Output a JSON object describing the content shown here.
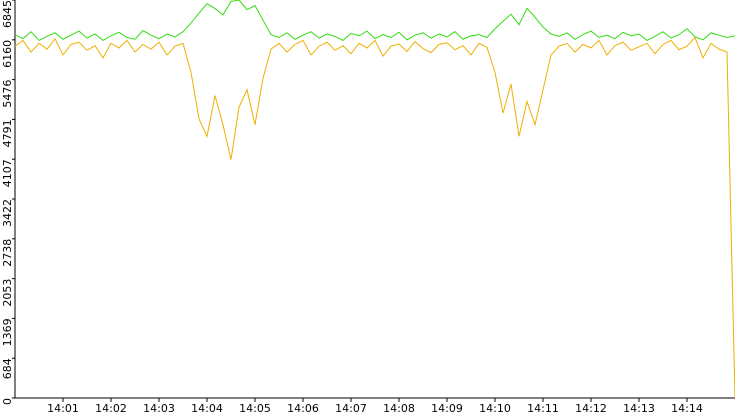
{
  "chart_data": {
    "type": "line",
    "categories": [
      null,
      null,
      null,
      null,
      null,
      null,
      "14:01",
      null,
      null,
      null,
      null,
      null,
      "14:02",
      null,
      null,
      null,
      null,
      null,
      "14:03",
      null,
      null,
      null,
      null,
      null,
      "14:04",
      null,
      null,
      null,
      null,
      null,
      "14:05",
      null,
      null,
      null,
      null,
      null,
      "14:06",
      null,
      null,
      null,
      null,
      null,
      "14:07",
      null,
      null,
      null,
      null,
      null,
      "14:08",
      null,
      null,
      null,
      null,
      null,
      "14:09",
      null,
      null,
      null,
      null,
      null,
      "14:10",
      null,
      null,
      null,
      null,
      null,
      "14:11",
      null,
      null,
      null,
      null,
      null,
      "14:12",
      null,
      null,
      null,
      null,
      null,
      "14:13",
      null,
      null,
      null,
      null,
      null,
      "14:14",
      null,
      null,
      null,
      null,
      null,
      null
    ],
    "series": [
      {
        "color": "#33dd11",
        "values": [
          6250,
          6180,
          6300,
          6150,
          6220,
          6280,
          6170,
          6240,
          6310,
          6190,
          6260,
          6150,
          6230,
          6290,
          6200,
          6170,
          6320,
          6240,
          6180,
          6260,
          6210,
          6300,
          6450,
          6620,
          6780,
          6700,
          6590,
          6820,
          6845,
          6680,
          6750,
          6500,
          6250,
          6200,
          6280,
          6170,
          6240,
          6300,
          6190,
          6260,
          6220,
          6150,
          6270,
          6230,
          6310,
          6180,
          6250,
          6200,
          6290,
          6160,
          6240,
          6280,
          6190,
          6260,
          6210,
          6300,
          6170,
          6230,
          6250,
          6200,
          6350,
          6480,
          6600,
          6420,
          6700,
          6550,
          6380,
          6260,
          6220,
          6280,
          6170,
          6250,
          6310,
          6200,
          6240,
          6180,
          6290,
          6230,
          6260,
          6150,
          6220,
          6300,
          6190,
          6250,
          6350,
          6210,
          6160,
          6280,
          6240,
          6200,
          6230
        ]
      },
      {
        "color": "#f0b000",
        "values": [
          6050,
          6150,
          5950,
          6100,
          6000,
          6180,
          5900,
          6080,
          6120,
          5980,
          6060,
          5850,
          6100,
          6020,
          6150,
          5950,
          6080,
          6000,
          6120,
          5900,
          6050,
          6100,
          5600,
          4800,
          4500,
          5200,
          4700,
          4100,
          5000,
          5300,
          4700,
          5500,
          6000,
          6100,
          5950,
          6080,
          6150,
          5900,
          6050,
          6120,
          5980,
          6060,
          5920,
          6100,
          6020,
          6150,
          5880,
          6050,
          6090,
          5960,
          6130,
          6010,
          5940,
          6080,
          6110,
          5990,
          6060,
          5900,
          6100,
          6030,
          5600,
          4900,
          5400,
          4500,
          5100,
          4700,
          5300,
          5900,
          6050,
          6100,
          5950,
          6080,
          6020,
          6150,
          5900,
          6060,
          6120,
          5980,
          6040,
          6100,
          5920,
          6080,
          6150,
          5990,
          6050,
          6200,
          5850,
          6100,
          6000,
          5950,
          0
        ]
      }
    ],
    "ylim": [
      0,
      6845
    ],
    "yticks": [
      0,
      684,
      1369,
      2053,
      2738,
      3422,
      4107,
      4791,
      5476,
      6160,
      6845
    ]
  }
}
